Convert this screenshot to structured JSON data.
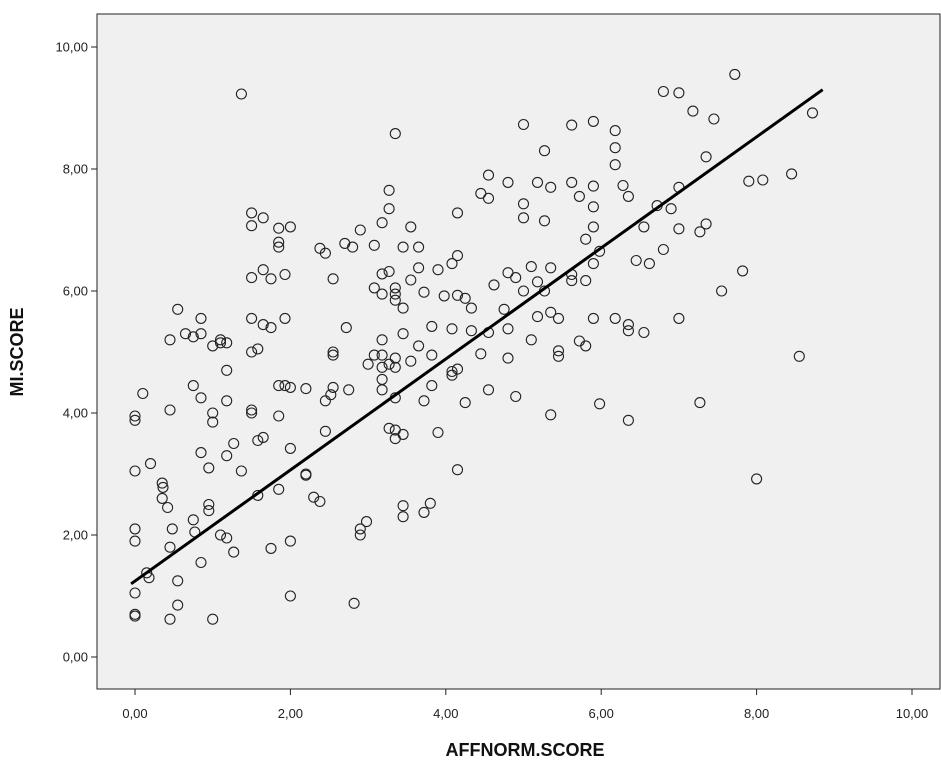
{
  "chart_data": {
    "type": "scatter",
    "title": "",
    "xlabel": "AFFNORM.SCORE",
    "ylabel": "MI.SCORE",
    "xlim": [
      -0.5,
      10.3
    ],
    "ylim": [
      -0.5,
      10.6
    ],
    "x_ticks": [
      0,
      2,
      4,
      6,
      8,
      10
    ],
    "y_ticks": [
      0,
      2,
      4,
      6,
      8,
      10
    ],
    "x_tick_labels": [
      "0,00",
      "2,00",
      "4,00",
      "6,00",
      "8,00",
      "10,00"
    ],
    "y_tick_labels": [
      "0,00",
      "2,00",
      "4,00",
      "6,00",
      "8,00",
      "10,00"
    ],
    "grid": false,
    "fit_line": {
      "x": [
        -0.05,
        8.85
      ],
      "y": [
        1.2,
        9.3
      ]
    },
    "points": [
      [
        0.0,
        3.95
      ],
      [
        0.0,
        3.88
      ],
      [
        0.0,
        3.05
      ],
      [
        0.0,
        2.1
      ],
      [
        0.0,
        1.9
      ],
      [
        0.0,
        1.05
      ],
      [
        0.0,
        0.7
      ],
      [
        0.0,
        0.67
      ],
      [
        0.1,
        4.32
      ],
      [
        0.15,
        1.38
      ],
      [
        0.18,
        1.3
      ],
      [
        0.2,
        3.17
      ],
      [
        0.35,
        2.85
      ],
      [
        0.36,
        2.78
      ],
      [
        0.35,
        2.6
      ],
      [
        0.42,
        2.45
      ],
      [
        0.45,
        4.05
      ],
      [
        0.45,
        5.2
      ],
      [
        0.45,
        1.8
      ],
      [
        0.45,
        0.62
      ],
      [
        0.48,
        2.1
      ],
      [
        0.55,
        5.7
      ],
      [
        0.55,
        1.25
      ],
      [
        0.55,
        0.85
      ],
      [
        0.65,
        5.3
      ],
      [
        0.75,
        5.25
      ],
      [
        0.75,
        4.45
      ],
      [
        0.75,
        2.25
      ],
      [
        0.77,
        2.05
      ],
      [
        0.85,
        5.55
      ],
      [
        0.85,
        5.3
      ],
      [
        0.85,
        4.25
      ],
      [
        0.85,
        3.35
      ],
      [
        0.85,
        1.55
      ],
      [
        0.95,
        3.1
      ],
      [
        0.95,
        2.5
      ],
      [
        0.95,
        2.4
      ],
      [
        1.0,
        5.1
      ],
      [
        1.0,
        4.0
      ],
      [
        1.0,
        3.85
      ],
      [
        1.0,
        0.62
      ],
      [
        1.1,
        5.2
      ],
      [
        1.1,
        5.15
      ],
      [
        1.1,
        2.0
      ],
      [
        1.18,
        5.15
      ],
      [
        1.18,
        4.7
      ],
      [
        1.18,
        4.2
      ],
      [
        1.18,
        3.3
      ],
      [
        1.18,
        1.95
      ],
      [
        1.27,
        3.5
      ],
      [
        1.27,
        1.72
      ],
      [
        1.37,
        9.23
      ],
      [
        1.37,
        3.05
      ],
      [
        1.5,
        7.28
      ],
      [
        1.5,
        7.07
      ],
      [
        1.5,
        6.22
      ],
      [
        1.5,
        5.55
      ],
      [
        1.5,
        5.0
      ],
      [
        1.5,
        4.05
      ],
      [
        1.5,
        4.0
      ],
      [
        1.58,
        5.05
      ],
      [
        1.58,
        3.55
      ],
      [
        1.58,
        2.65
      ],
      [
        1.65,
        7.2
      ],
      [
        1.65,
        6.35
      ],
      [
        1.65,
        5.45
      ],
      [
        1.65,
        3.6
      ],
      [
        1.75,
        6.2
      ],
      [
        1.75,
        5.4
      ],
      [
        1.75,
        1.78
      ],
      [
        1.85,
        7.03
      ],
      [
        1.85,
        6.8
      ],
      [
        1.85,
        6.72
      ],
      [
        1.85,
        4.45
      ],
      [
        1.85,
        3.95
      ],
      [
        1.85,
        2.75
      ],
      [
        1.93,
        6.27
      ],
      [
        1.93,
        5.55
      ],
      [
        1.93,
        4.45
      ],
      [
        2.0,
        7.05
      ],
      [
        2.0,
        4.42
      ],
      [
        2.0,
        3.42
      ],
      [
        2.0,
        1.9
      ],
      [
        2.0,
        1.0
      ],
      [
        2.2,
        4.4
      ],
      [
        2.2,
        3.0
      ],
      [
        2.2,
        2.98
      ],
      [
        2.3,
        2.62
      ],
      [
        2.38,
        2.55
      ],
      [
        2.38,
        6.7
      ],
      [
        2.45,
        6.62
      ],
      [
        2.45,
        4.2
      ],
      [
        2.45,
        3.7
      ],
      [
        2.52,
        4.3
      ],
      [
        2.55,
        6.2
      ],
      [
        2.55,
        5.0
      ],
      [
        2.55,
        4.95
      ],
      [
        2.55,
        4.42
      ],
      [
        2.7,
        6.78
      ],
      [
        2.72,
        5.4
      ],
      [
        2.75,
        4.38
      ],
      [
        2.8,
        6.72
      ],
      [
        2.82,
        0.88
      ],
      [
        2.9,
        7.0
      ],
      [
        2.9,
        2.1
      ],
      [
        2.9,
        2.0
      ],
      [
        2.98,
        2.22
      ],
      [
        3.0,
        4.8
      ],
      [
        3.08,
        6.75
      ],
      [
        3.08,
        6.05
      ],
      [
        3.08,
        4.95
      ],
      [
        3.18,
        7.12
      ],
      [
        3.18,
        6.28
      ],
      [
        3.18,
        5.95
      ],
      [
        3.18,
        5.2
      ],
      [
        3.18,
        4.95
      ],
      [
        3.18,
        4.75
      ],
      [
        3.18,
        4.55
      ],
      [
        3.18,
        4.38
      ],
      [
        3.27,
        7.65
      ],
      [
        3.27,
        7.35
      ],
      [
        3.27,
        6.32
      ],
      [
        3.27,
        4.8
      ],
      [
        3.27,
        3.75
      ],
      [
        3.35,
        8.58
      ],
      [
        3.35,
        6.05
      ],
      [
        3.35,
        5.95
      ],
      [
        3.35,
        5.85
      ],
      [
        3.35,
        4.9
      ],
      [
        3.35,
        4.75
      ],
      [
        3.35,
        4.25
      ],
      [
        3.35,
        3.72
      ],
      [
        3.35,
        3.58
      ],
      [
        3.45,
        6.72
      ],
      [
        3.45,
        5.72
      ],
      [
        3.45,
        5.3
      ],
      [
        3.45,
        3.65
      ],
      [
        3.45,
        2.48
      ],
      [
        3.45,
        2.3
      ],
      [
        3.55,
        7.05
      ],
      [
        3.55,
        6.18
      ],
      [
        3.55,
        4.85
      ],
      [
        3.65,
        6.72
      ],
      [
        3.65,
        6.38
      ],
      [
        3.65,
        5.1
      ],
      [
        3.72,
        5.98
      ],
      [
        3.72,
        4.2
      ],
      [
        3.72,
        2.37
      ],
      [
        3.8,
        2.52
      ],
      [
        3.82,
        5.42
      ],
      [
        3.82,
        4.95
      ],
      [
        3.82,
        4.45
      ],
      [
        3.9,
        6.35
      ],
      [
        3.9,
        3.68
      ],
      [
        3.98,
        5.92
      ],
      [
        4.08,
        6.45
      ],
      [
        4.08,
        5.38
      ],
      [
        4.08,
        4.68
      ],
      [
        4.08,
        4.62
      ],
      [
        4.15,
        7.28
      ],
      [
        4.15,
        6.58
      ],
      [
        4.15,
        5.93
      ],
      [
        4.15,
        4.72
      ],
      [
        4.15,
        3.07
      ],
      [
        4.25,
        5.88
      ],
      [
        4.25,
        4.17
      ],
      [
        4.33,
        5.72
      ],
      [
        4.33,
        5.35
      ],
      [
        4.45,
        7.6
      ],
      [
        4.45,
        4.97
      ],
      [
        4.55,
        7.9
      ],
      [
        4.55,
        7.52
      ],
      [
        4.55,
        5.32
      ],
      [
        4.55,
        4.38
      ],
      [
        4.62,
        6.1
      ],
      [
        4.75,
        5.7
      ],
      [
        4.8,
        7.78
      ],
      [
        4.8,
        6.3
      ],
      [
        4.8,
        5.38
      ],
      [
        4.8,
        4.9
      ],
      [
        4.9,
        6.22
      ],
      [
        4.9,
        4.27
      ],
      [
        5.0,
        8.73
      ],
      [
        5.0,
        7.43
      ],
      [
        5.0,
        7.2
      ],
      [
        5.0,
        6.0
      ],
      [
        5.1,
        6.4
      ],
      [
        5.1,
        5.2
      ],
      [
        5.18,
        7.78
      ],
      [
        5.18,
        6.15
      ],
      [
        5.18,
        5.58
      ],
      [
        5.27,
        8.3
      ],
      [
        5.27,
        7.15
      ],
      [
        5.27,
        6.0
      ],
      [
        5.35,
        7.7
      ],
      [
        5.35,
        6.38
      ],
      [
        5.35,
        5.65
      ],
      [
        5.35,
        3.97
      ],
      [
        5.45,
        5.55
      ],
      [
        5.45,
        5.02
      ],
      [
        5.45,
        4.93
      ],
      [
        5.62,
        8.72
      ],
      [
        5.62,
        7.78
      ],
      [
        5.62,
        6.27
      ],
      [
        5.62,
        6.17
      ],
      [
        5.72,
        7.55
      ],
      [
        5.72,
        5.18
      ],
      [
        5.8,
        6.85
      ],
      [
        5.8,
        6.17
      ],
      [
        5.8,
        5.1
      ],
      [
        5.9,
        8.78
      ],
      [
        5.9,
        7.72
      ],
      [
        5.9,
        7.38
      ],
      [
        5.9,
        7.05
      ],
      [
        5.9,
        6.45
      ],
      [
        5.9,
        5.55
      ],
      [
        5.98,
        6.65
      ],
      [
        5.98,
        4.15
      ],
      [
        6.18,
        8.63
      ],
      [
        6.18,
        8.35
      ],
      [
        6.18,
        8.07
      ],
      [
        6.18,
        5.55
      ],
      [
        6.28,
        7.73
      ],
      [
        6.35,
        7.55
      ],
      [
        6.35,
        5.45
      ],
      [
        6.35,
        5.35
      ],
      [
        6.35,
        3.88
      ],
      [
        6.45,
        6.5
      ],
      [
        6.55,
        7.05
      ],
      [
        6.55,
        5.32
      ],
      [
        6.62,
        6.45
      ],
      [
        6.72,
        7.4
      ],
      [
        6.8,
        9.27
      ],
      [
        6.8,
        6.68
      ],
      [
        6.9,
        7.35
      ],
      [
        7.0,
        9.25
      ],
      [
        7.0,
        7.7
      ],
      [
        7.0,
        7.02
      ],
      [
        7.0,
        5.55
      ],
      [
        7.18,
        8.95
      ],
      [
        7.27,
        6.97
      ],
      [
        7.27,
        4.17
      ],
      [
        7.35,
        8.2
      ],
      [
        7.35,
        7.1
      ],
      [
        7.45,
        8.82
      ],
      [
        7.55,
        6.0
      ],
      [
        7.72,
        9.55
      ],
      [
        7.82,
        6.33
      ],
      [
        7.9,
        7.8
      ],
      [
        8.0,
        2.92
      ],
      [
        8.08,
        7.82
      ],
      [
        8.45,
        7.92
      ],
      [
        8.55,
        4.93
      ],
      [
        8.72,
        8.92
      ]
    ]
  }
}
